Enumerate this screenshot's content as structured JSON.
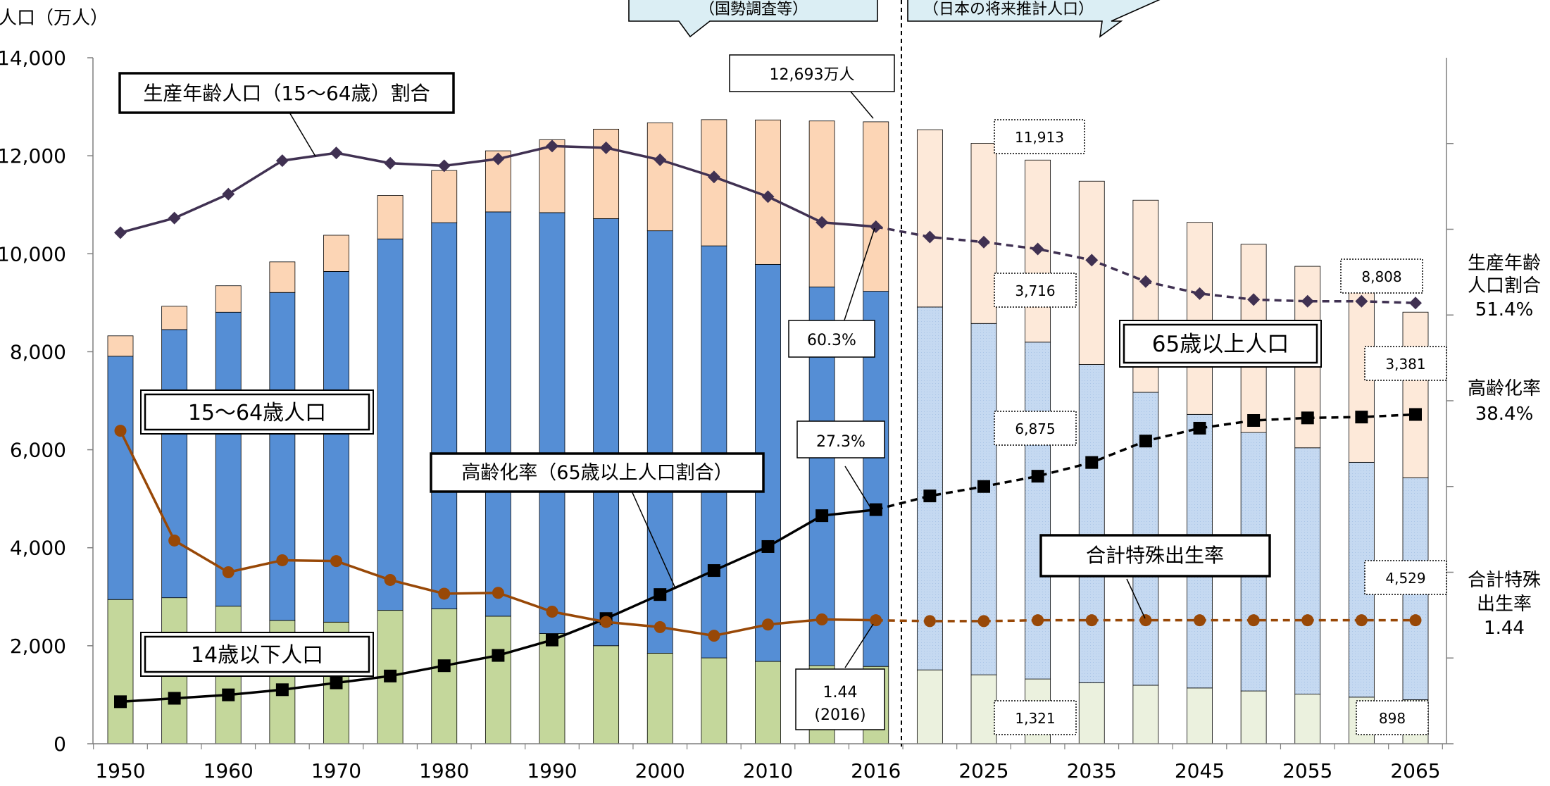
{
  "chart_data": {
    "type": "bar",
    "y_axis_label": "人口（万人）",
    "ylim": [
      0,
      14000
    ],
    "y_ticks": [
      "0",
      "2,000",
      "4,000",
      "6,000",
      "8,000",
      "10,000",
      "12,000",
      "14,000"
    ],
    "x_tick_labels": [
      "1950",
      "1960",
      "1970",
      "1980",
      "1990",
      "2000",
      "2010",
      "2016",
      "2025",
      "2035",
      "2045",
      "2055",
      "2065"
    ],
    "categories": [
      "1950",
      "1955",
      "1960",
      "1965",
      "1970",
      "1975",
      "1980",
      "1985",
      "1990",
      "1995",
      "2000",
      "2005",
      "2010",
      "2015",
      "2016",
      "2020",
      "2025",
      "2030",
      "2035",
      "2040",
      "2045",
      "2050",
      "2055",
      "2060",
      "2065"
    ],
    "projected_from_index": 15,
    "series": [
      {
        "name": "14歳以下人口",
        "color": "#c4d79b",
        "projected_color": "#ebf1de",
        "values": [
          2943,
          2980,
          2807,
          2517,
          2482,
          2722,
          2751,
          2603,
          2249,
          2001,
          1847,
          1752,
          1680,
          1595,
          1578,
          1507,
          1407,
          1321,
          1246,
          1194,
          1138,
          1077,
          1012,
          951,
          898
        ]
      },
      {
        "name": "15〜64歳人口",
        "color": "#558ed5",
        "projected_color": "#c5d9f1",
        "values": [
          4966,
          5473,
          6000,
          6693,
          7157,
          7581,
          7883,
          8251,
          8590,
          8716,
          8622,
          8409,
          8103,
          7728,
          7656,
          7406,
          7170,
          6875,
          6494,
          5978,
          5584,
          5275,
          5028,
          4793,
          4529
        ]
      },
      {
        "name": "65歳以上人口",
        "color": "#fcd5b5",
        "projected_color": "#fde9d9",
        "values": [
          416,
          475,
          540,
          624,
          739,
          887,
          1065,
          1247,
          1489,
          1826,
          2204,
          2576,
          2948,
          3387,
          3459,
          3619,
          3677,
          3716,
          3741,
          3921,
          3919,
          3841,
          3704,
          3540,
          3381
        ]
      }
    ],
    "line_series": [
      {
        "name": "生産年齢人口（15〜64歳）割合",
        "color": "#403152",
        "marker": "diamond",
        "values": [
          59.6,
          61.3,
          64.1,
          68.0,
          68.9,
          67.7,
          67.4,
          68.2,
          69.7,
          69.5,
          68.1,
          66.1,
          63.8,
          60.8,
          60.3,
          59.1,
          58.5,
          57.7,
          56.4,
          53.9,
          52.5,
          51.8,
          51.6,
          51.6,
          51.4
        ]
      },
      {
        "name": "高齢化率（65歳以上人口割合）",
        "color": "#000000",
        "marker": "square",
        "values": [
          4.9,
          5.3,
          5.7,
          6.3,
          7.1,
          7.9,
          9.1,
          10.3,
          12.1,
          14.6,
          17.4,
          20.2,
          23.0,
          26.6,
          27.3,
          28.9,
          30.0,
          31.2,
          32.8,
          35.3,
          36.8,
          37.7,
          38.0,
          38.1,
          38.4
        ]
      },
      {
        "name": "合計特殊出生率",
        "color": "#984807",
        "marker": "circle",
        "values": [
          3.65,
          2.37,
          2.0,
          2.14,
          2.13,
          1.91,
          1.75,
          1.76,
          1.54,
          1.42,
          1.36,
          1.26,
          1.39,
          1.45,
          1.44,
          1.43,
          1.43,
          1.44,
          1.44,
          1.44,
          1.44,
          1.44,
          1.44,
          1.44,
          1.44
        ]
      }
    ],
    "right_axis_range": [
      0,
      80
    ],
    "tfr_axis_range": [
      0,
      8
    ],
    "header_boxes": [
      "（国勢調査等）",
      "（日本の将来推計人口）"
    ],
    "series_labels": {
      "working_ratio": "生産年齢人口（15〜64歳）割合",
      "aged_pop": "65歳以上人口",
      "working_pop": "15〜64歳人口",
      "aging_rate": "高齢化率（65歳以上人口割合）",
      "tfr": "合計特殊出生率",
      "child_pop": "14歳以下人口"
    },
    "annotations": {
      "total_2016": "12,693万人",
      "working_ratio_2016": "60.3%",
      "aging_rate_2016": "27.3%",
      "tfr_2016_line1": "1.44",
      "tfr_2016_line2": "(2016)",
      "total_2030": "11,913",
      "aged_2030": "3,716",
      "working_2030": "6,875",
      "child_2030": "1,321",
      "total_2065": "8,808",
      "aged_2065": "3,381",
      "working_2065": "4,529",
      "child_2065": "898"
    },
    "right_labels": {
      "working_ratio_l1": "生産年齢",
      "working_ratio_l2": "人口割合",
      "working_ratio_val": "51.4%",
      "aging_l1": "高齢化率",
      "aging_val": "38.4%",
      "tfr_l1": "合計特殊",
      "tfr_l2": "出生率",
      "tfr_val": "1.44"
    }
  }
}
